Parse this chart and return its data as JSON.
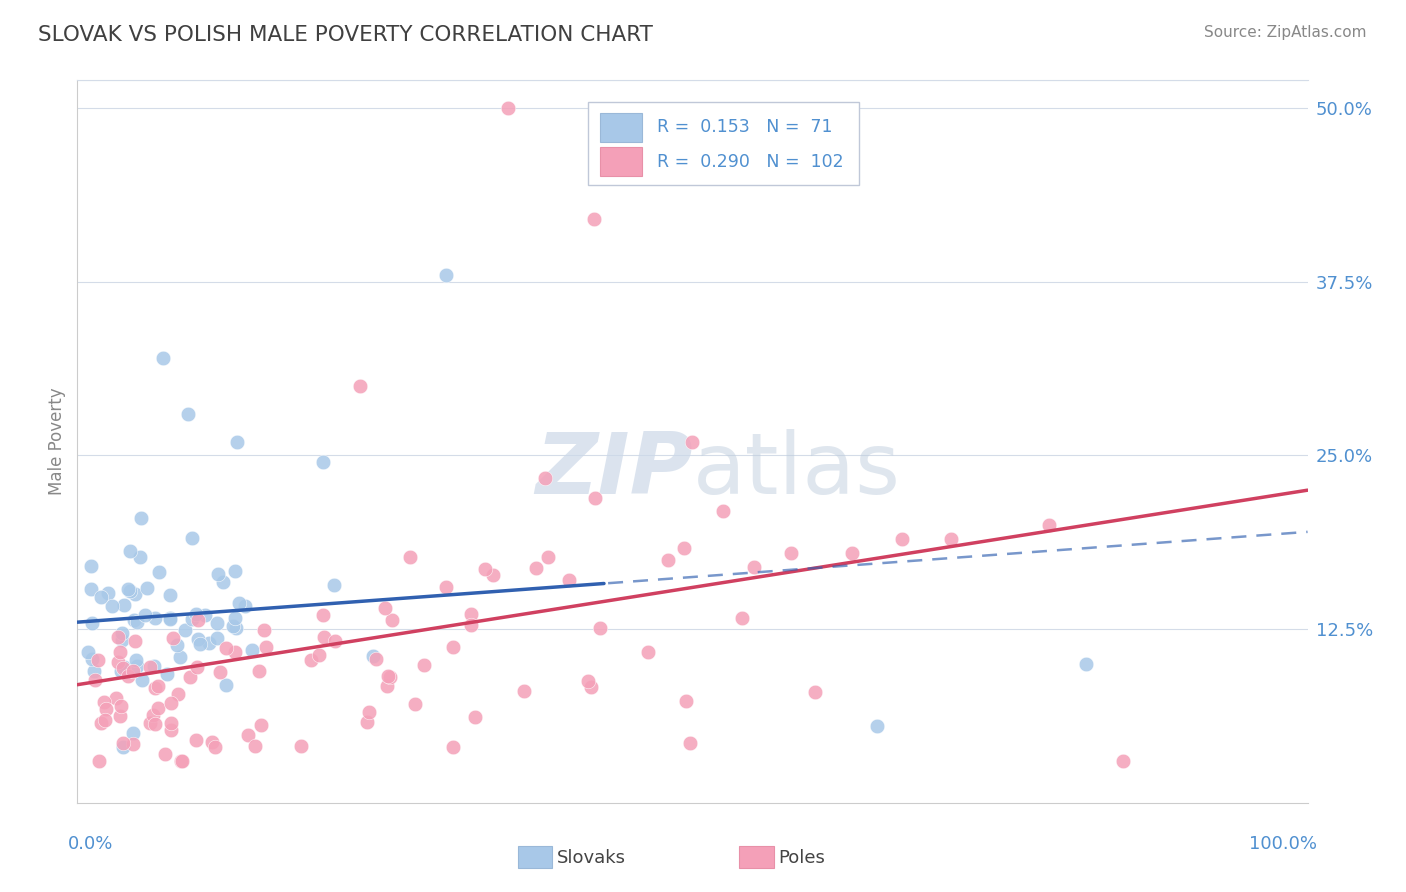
{
  "title": "SLOVAK VS POLISH MALE POVERTY CORRELATION CHART",
  "source": "Source: ZipAtlas.com",
  "ylabel": "Male Poverty",
  "xlim": [
    0.0,
    1.0
  ],
  "ylim": [
    0.0,
    0.52
  ],
  "slovak_R": 0.153,
  "slovak_N": 71,
  "polish_R": 0.29,
  "polish_N": 102,
  "slovak_color": "#a8c8e8",
  "polish_color": "#f4a0b8",
  "slovak_line_color": "#3060b0",
  "polish_line_color": "#d04060",
  "background_color": "#ffffff",
  "grid_color": "#d4dce8",
  "ytick_vals": [
    0.125,
    0.25,
    0.375,
    0.5
  ],
  "ytick_labels": [
    "12.5%",
    "25.0%",
    "37.5%",
    "50.0%"
  ],
  "tick_color": "#5090d0",
  "axis_label_color": "#5090d0",
  "ylabel_color": "#888888",
  "title_color": "#404040",
  "source_color": "#888888",
  "watermark_zip_color": "#ccd8e8",
  "watermark_atlas_color": "#c0cede"
}
